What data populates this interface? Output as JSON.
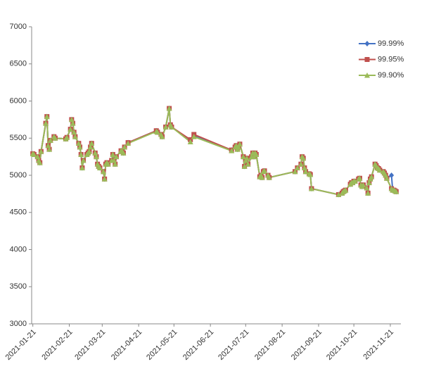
{
  "chart_data": {
    "type": "line",
    "x": [
      "2021-01-21",
      "2021-01-22",
      "2021-01-25",
      "2021-01-26",
      "2021-01-27",
      "2021-01-28",
      "2021-02-01",
      "2021-02-02",
      "2021-02-03",
      "2021-02-04",
      "2021-02-05",
      "2021-02-08",
      "2021-02-09",
      "2021-02-18",
      "2021-02-19",
      "2021-02-22",
      "2021-02-23",
      "2021-02-24",
      "2021-02-25",
      "2021-02-26",
      "2021-03-01",
      "2021-03-02",
      "2021-03-03",
      "2021-03-04",
      "2021-03-05",
      "2021-03-08",
      "2021-03-09",
      "2021-03-10",
      "2021-03-11",
      "2021-03-12",
      "2021-03-15",
      "2021-03-16",
      "2021-03-17",
      "2021-03-18",
      "2021-03-19",
      "2021-03-22",
      "2021-03-23",
      "2021-03-24",
      "2021-03-25",
      "2021-03-26",
      "2021-03-29",
      "2021-03-30",
      "2021-03-31",
      "2021-04-01",
      "2021-04-02",
      "2021-04-06",
      "2021-04-07",
      "2021-04-08",
      "2021-04-09",
      "2021-04-12",
      "2021-05-06",
      "2021-05-07",
      "2021-05-10",
      "2021-05-11",
      "2021-05-14",
      "2021-05-17",
      "2021-05-18",
      "2021-05-19",
      "2021-06-04",
      "2021-06-07",
      "2021-07-09",
      "2021-07-12",
      "2021-07-13",
      "2021-07-14",
      "2021-07-15",
      "2021-07-16",
      "2021-07-19",
      "2021-07-20",
      "2021-07-21",
      "2021-07-22",
      "2021-07-23",
      "2021-07-26",
      "2021-07-27",
      "2021-07-28",
      "2021-07-29",
      "2021-07-30",
      "2021-08-02",
      "2021-08-03",
      "2021-08-04",
      "2021-08-05",
      "2021-08-06",
      "2021-08-09",
      "2021-08-10",
      "2021-09-01",
      "2021-09-03",
      "2021-09-06",
      "2021-09-07",
      "2021-09-08",
      "2021-09-09",
      "2021-09-10",
      "2021-09-13",
      "2021-09-14",
      "2021-09-15",
      "2021-10-08",
      "2021-10-11",
      "2021-10-12",
      "2021-10-13",
      "2021-10-14",
      "2021-10-18",
      "2021-10-19",
      "2021-10-20",
      "2021-10-21",
      "2021-10-22",
      "2021-10-25",
      "2021-10-26",
      "2021-10-27",
      "2021-10-28",
      "2021-10-29",
      "2021-11-01",
      "2021-11-02",
      "2021-11-03",
      "2021-11-04",
      "2021-11-05",
      "2021-11-08",
      "2021-11-09",
      "2021-11-10",
      "2021-11-11",
      "2021-11-12",
      "2021-11-15",
      "2021-11-16",
      "2021-11-17",
      "2021-11-18",
      "2021-11-22",
      "2021-11-23",
      "2021-11-24",
      "2021-11-25",
      "2021-11-26"
    ],
    "series": [
      {
        "name": "99.99%",
        "color": "#4472c4",
        "marker": "diamond",
        "values": [
          5290,
          5280,
          5250,
          5200,
          5170,
          5320,
          5700,
          5790,
          5400,
          5350,
          5470,
          5520,
          5500,
          5490,
          5510,
          5620,
          5750,
          5700,
          5580,
          5520,
          5430,
          5380,
          5280,
          5100,
          5200,
          5280,
          5300,
          5320,
          5380,
          5430,
          5300,
          5250,
          5150,
          5120,
          5100,
          5050,
          4950,
          5150,
          5170,
          5150,
          5200,
          5280,
          5200,
          5150,
          5250,
          5330,
          5320,
          5300,
          5380,
          5440,
          5600,
          5580,
          5550,
          5520,
          5650,
          5900,
          5680,
          5650,
          5470,
          5540,
          5340,
          5380,
          5400,
          5350,
          5380,
          5420,
          5250,
          5120,
          5200,
          5230,
          5150,
          5250,
          5300,
          5250,
          5300,
          5280,
          4980,
          5000,
          4970,
          5050,
          5060,
          5000,
          4970,
          5050,
          5100,
          5150,
          5250,
          5230,
          5100,
          5050,
          5020,
          5010,
          4820,
          4740,
          4760,
          4780,
          4790,
          4800,
          4880,
          4900,
          4900,
          4920,
          4920,
          4950,
          4960,
          4870,
          4850,
          4870,
          4830,
          4760,
          4900,
          4950,
          4980,
          5150,
          5130,
          5100,
          5090,
          5070,
          5050,
          5030,
          5000,
          4960,
          5000,
          4800,
          4800,
          4790,
          4780
        ]
      },
      {
        "name": "99.95%",
        "color": "#c0504d",
        "marker": "square",
        "values": [
          5290,
          5280,
          5250,
          5200,
          5170,
          5320,
          5700,
          5790,
          5400,
          5350,
          5470,
          5520,
          5500,
          5490,
          5510,
          5620,
          5750,
          5700,
          5580,
          5520,
          5430,
          5380,
          5280,
          5100,
          5200,
          5280,
          5300,
          5320,
          5380,
          5430,
          5300,
          5250,
          5150,
          5120,
          5100,
          5050,
          4950,
          5150,
          5170,
          5150,
          5200,
          5280,
          5200,
          5150,
          5250,
          5330,
          5320,
          5300,
          5380,
          5440,
          5600,
          5580,
          5550,
          5520,
          5650,
          5900,
          5680,
          5650,
          5480,
          5550,
          5340,
          5380,
          5400,
          5350,
          5380,
          5420,
          5250,
          5120,
          5200,
          5230,
          5150,
          5250,
          5300,
          5250,
          5300,
          5280,
          4980,
          5000,
          4970,
          5050,
          5060,
          5000,
          4970,
          5050,
          5100,
          5150,
          5250,
          5230,
          5100,
          5050,
          5020,
          5010,
          4820,
          4740,
          4760,
          4780,
          4790,
          4800,
          4880,
          4900,
          4900,
          4920,
          4920,
          4950,
          4960,
          4870,
          4850,
          4870,
          4830,
          4760,
          4900,
          4950,
          4980,
          5150,
          5130,
          5100,
          5090,
          5070,
          5050,
          5030,
          5000,
          4960,
          4820,
          4800,
          4800,
          4790,
          4780
        ]
      },
      {
        "name": "99.90%",
        "color": "#9bbb59",
        "marker": "triangle",
        "values": [
          5290,
          5280,
          5250,
          5200,
          5170,
          5320,
          5700,
          5790,
          5400,
          5350,
          5470,
          5520,
          5500,
          5490,
          5510,
          5620,
          5750,
          5700,
          5580,
          5520,
          5430,
          5380,
          5280,
          5100,
          5200,
          5280,
          5300,
          5320,
          5380,
          5430,
          5300,
          5250,
          5150,
          5120,
          5100,
          5050,
          4950,
          5150,
          5170,
          5150,
          5200,
          5280,
          5200,
          5150,
          5250,
          5330,
          5320,
          5300,
          5380,
          5430,
          5590,
          5580,
          5550,
          5520,
          5650,
          5900,
          5680,
          5650,
          5450,
          5520,
          5330,
          5380,
          5400,
          5350,
          5380,
          5420,
          5250,
          5120,
          5200,
          5230,
          5150,
          5250,
          5300,
          5250,
          5300,
          5280,
          4980,
          5000,
          4970,
          5050,
          5060,
          5000,
          4970,
          5050,
          5100,
          5150,
          5250,
          5230,
          5100,
          5050,
          5020,
          5010,
          4820,
          4740,
          4760,
          4780,
          4790,
          4800,
          4880,
          4900,
          4900,
          4920,
          4920,
          4950,
          4960,
          4870,
          4850,
          4870,
          4830,
          4760,
          4900,
          4950,
          4980,
          5150,
          5130,
          5100,
          5090,
          5070,
          5050,
          5030,
          5000,
          4960,
          4820,
          4800,
          4800,
          4790,
          4780
        ]
      }
    ],
    "xlim": [
      "2021-01-20",
      "2021-11-30"
    ],
    "xticks": [
      "2021-01-21",
      "2021-02-21",
      "2021-03-21",
      "2021-04-21",
      "2021-05-21",
      "2021-06-21",
      "2021-07-21",
      "2021-08-21",
      "2021-09-21",
      "2021-10-21",
      "2021-11-21"
    ],
    "ylim": [
      3000,
      7000
    ],
    "yticks": [
      3000,
      3500,
      4000,
      4500,
      5000,
      5500,
      6000,
      6500,
      7000
    ],
    "grid": false,
    "legend": "upper right"
  }
}
